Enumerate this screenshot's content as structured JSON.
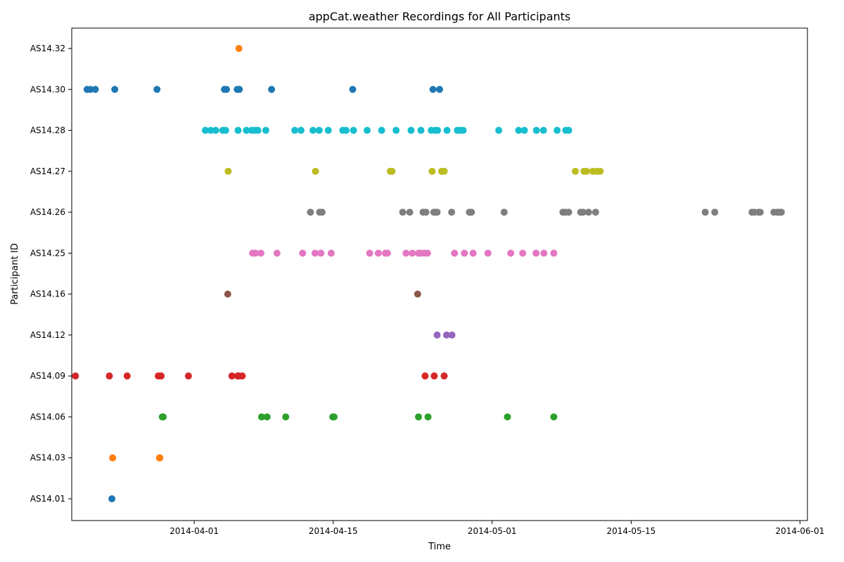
{
  "chart_data": {
    "type": "scatter",
    "title": "appCat.weather Recordings for All Participants",
    "xlabel": "Time",
    "ylabel": "Participant ID",
    "x_type": "date",
    "xlim": [
      "2014-03-19 16:00",
      "2014-06-01 18:00"
    ],
    "x_ticks": [
      {
        "value": "2014-04-01",
        "label": "2014-04-01"
      },
      {
        "value": "2014-04-15",
        "label": "2014-04-15"
      },
      {
        "value": "2014-05-01",
        "label": "2014-05-01"
      },
      {
        "value": "2014-05-15",
        "label": "2014-05-15"
      },
      {
        "value": "2014-06-01",
        "label": "2014-06-01"
      }
    ],
    "categories": [
      "AS14.01",
      "AS14.03",
      "AS14.06",
      "AS14.09",
      "AS14.12",
      "AS14.16",
      "AS14.25",
      "AS14.26",
      "AS14.27",
      "AS14.28",
      "AS14.30",
      "AS14.32"
    ],
    "grid": false,
    "series": [
      {
        "category": "AS14.01",
        "color": "#1f77b4",
        "x": [
          "2014-03-23 17:00"
        ]
      },
      {
        "category": "AS14.03",
        "color": "#ff7f0e",
        "x": [
          "2014-03-23 19:00",
          "2014-03-28 12:00",
          "2014-03-28 13:00"
        ]
      },
      {
        "category": "AS14.06",
        "color": "#2ca02c",
        "x": [
          "2014-03-28 19:00",
          "2014-03-28 21:00",
          "2014-04-07 19:00",
          "2014-04-08 08:00",
          "2014-04-10 05:00",
          "2014-04-14 23:00",
          "2014-04-15 02:00",
          "2014-04-23 14:00",
          "2014-04-24 13:00",
          "2014-05-02 13:00",
          "2014-05-07 05:00"
        ]
      },
      {
        "category": "AS14.09",
        "color": "#d62728",
        "x": [
          "2014-03-20 01:00",
          "2014-03-23 11:00",
          "2014-03-25 06:00",
          "2014-03-28 09:00",
          "2014-03-28 14:00",
          "2014-03-28 16:00",
          "2014-03-31 10:00",
          "2014-04-04 19:00",
          "2014-04-05 09:00",
          "2014-04-05 12:00",
          "2014-04-05 20:00",
          "2014-04-24 06:00",
          "2014-04-25 04:00",
          "2014-04-26 04:00"
        ]
      },
      {
        "category": "AS14.12",
        "color": "#9467bd",
        "x": [
          "2014-04-25 11:00",
          "2014-04-26 10:00",
          "2014-04-26 23:00"
        ]
      },
      {
        "category": "AS14.16",
        "color": "#8c564b",
        "x": [
          "2014-04-04 09:00",
          "2014-04-23 12:00"
        ]
      },
      {
        "category": "AS14.25",
        "color": "#e377c2",
        "x": [
          "2014-04-06 21:00",
          "2014-04-07 04:00",
          "2014-04-07 17:00",
          "2014-04-09 08:00",
          "2014-04-11 22:00",
          "2014-04-13 04:00",
          "2014-04-13 18:00",
          "2014-04-14 19:00",
          "2014-04-18 16:00",
          "2014-04-19 13:00",
          "2014-04-20 06:00",
          "2014-04-20 11:00",
          "2014-04-22 08:00",
          "2014-04-22 23:00",
          "2014-04-23 14:00",
          "2014-04-23 19:00",
          "2014-04-24 04:00",
          "2014-04-24 12:00",
          "2014-04-27 05:00",
          "2014-04-28 05:00",
          "2014-04-29 02:00",
          "2014-04-30 14:00",
          "2014-05-02 21:00",
          "2014-05-04 02:00",
          "2014-05-05 10:00",
          "2014-05-06 05:00",
          "2014-05-07 05:00"
        ]
      },
      {
        "category": "AS14.26",
        "color": "#7f7f7f",
        "x": [
          "2014-04-12 17:00",
          "2014-04-13 15:00",
          "2014-04-13 21:00",
          "2014-04-22 00:00",
          "2014-04-22 17:00",
          "2014-04-24 01:00",
          "2014-04-24 08:00",
          "2014-04-25 03:00",
          "2014-04-25 06:00",
          "2014-04-25 11:00",
          "2014-04-26 22:00",
          "2014-04-28 17:00",
          "2014-04-28 22:00",
          "2014-05-02 05:00",
          "2014-05-08 03:00",
          "2014-05-08 09:00",
          "2014-05-08 17:00",
          "2014-05-09 22:00",
          "2014-05-10 04:00",
          "2014-05-10 17:00",
          "2014-05-11 10:00",
          "2014-05-22 11:00",
          "2014-05-23 10:00",
          "2014-05-27 04:00",
          "2014-05-27 10:00",
          "2014-05-27 20:00",
          "2014-05-28 00:00",
          "2014-05-29 09:00",
          "2014-05-29 17:00",
          "2014-05-29 22:00",
          "2014-05-30 03:00"
        ]
      },
      {
        "category": "AS14.27",
        "color": "#bcbd22",
        "x": [
          "2014-04-04 10:00",
          "2014-04-13 05:00",
          "2014-04-20 18:00",
          "2014-04-20 22:00",
          "2014-04-24 23:00",
          "2014-04-25 22:00",
          "2014-04-26 04:00",
          "2014-05-09 09:00",
          "2014-05-10 06:00",
          "2014-05-10 12:00",
          "2014-05-11 03:00",
          "2014-05-11 13:00",
          "2014-05-11 21:00"
        ]
      },
      {
        "category": "AS14.28",
        "color": "#17becf",
        "x": [
          "2014-04-02 03:00",
          "2014-04-02 16:00",
          "2014-04-03 04:00",
          "2014-04-03 21:00",
          "2014-04-04 04:00",
          "2014-04-05 10:00",
          "2014-04-06 06:00",
          "2014-04-06 19:00",
          "2014-04-07 03:00",
          "2014-04-07 10:00",
          "2014-04-08 05:00",
          "2014-04-11 03:00",
          "2014-04-11 18:00",
          "2014-04-12 23:00",
          "2014-04-13 14:00",
          "2014-04-14 12:00",
          "2014-04-15 23:00",
          "2014-04-16 07:00",
          "2014-04-17 01:00",
          "2014-04-18 10:00",
          "2014-04-19 21:00",
          "2014-04-21 08:00",
          "2014-04-22 20:00",
          "2014-04-23 20:00",
          "2014-04-24 21:00",
          "2014-04-25 06:00",
          "2014-04-25 12:00",
          "2014-04-26 11:00",
          "2014-04-27 12:00",
          "2014-04-27 18:00",
          "2014-04-28 02:00",
          "2014-05-01 16:00",
          "2014-05-03 16:00",
          "2014-05-04 06:00",
          "2014-05-05 11:00",
          "2014-05-06 04:00",
          "2014-05-07 13:00",
          "2014-05-08 10:00",
          "2014-05-08 17:00"
        ]
      },
      {
        "category": "AS14.30",
        "color": "#1f77b4",
        "x": [
          "2014-03-21 05:00",
          "2014-03-21 13:00",
          "2014-03-22 01:00",
          "2014-03-24 00:00",
          "2014-03-28 06:00",
          "2014-04-04 01:00",
          "2014-04-04 06:00",
          "2014-04-05 08:00",
          "2014-04-05 13:00",
          "2014-04-08 19:00",
          "2014-04-16 23:00",
          "2014-04-25 01:00",
          "2014-04-25 17:00"
        ]
      },
      {
        "category": "AS14.32",
        "color": "#ff7f0e",
        "x": [
          "2014-04-05 12:00"
        ]
      }
    ]
  }
}
